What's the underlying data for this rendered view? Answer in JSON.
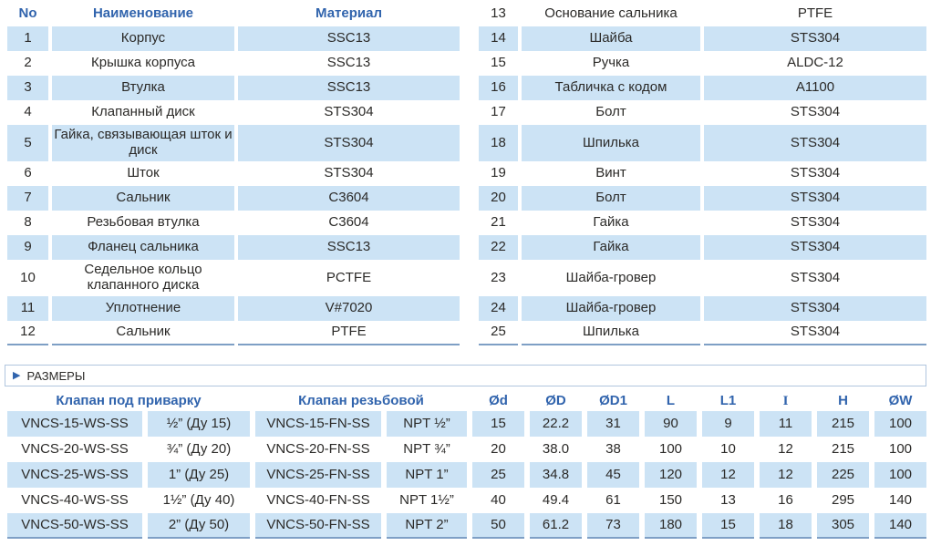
{
  "palette": {
    "accent_blue": "#3164ad",
    "row_blue": "#cce3f5",
    "text": "#2b2a28",
    "table_line": "#7e9fc5",
    "banner_border": "#b0c6de"
  },
  "parts": {
    "headers": {
      "no": "No",
      "name": "Наименование",
      "material": "Материал"
    },
    "left_rows": [
      {
        "no": "1",
        "name": "Корпус",
        "material": "SSC13",
        "shade": true,
        "tall": false
      },
      {
        "no": "2",
        "name": "Крышка корпуса",
        "material": "SSC13",
        "shade": false,
        "tall": false
      },
      {
        "no": "3",
        "name": "Втулка",
        "material": "SSC13",
        "shade": true,
        "tall": false
      },
      {
        "no": "4",
        "name": "Клапанный диск",
        "material": "STS304",
        "shade": false,
        "tall": false
      },
      {
        "no": "5",
        "name": "Гайка, связывающая шток и диск",
        "material": "STS304",
        "shade": true,
        "tall": true
      },
      {
        "no": "6",
        "name": "Шток",
        "material": "STS304",
        "shade": false,
        "tall": false
      },
      {
        "no": "7",
        "name": "Сальник",
        "material": "C3604",
        "shade": true,
        "tall": false
      },
      {
        "no": "8",
        "name": "Резьбовая втулка",
        "material": "C3604",
        "shade": false,
        "tall": false
      },
      {
        "no": "9",
        "name": "Фланец сальника",
        "material": "SSC13",
        "shade": true,
        "tall": false
      },
      {
        "no": "10",
        "name": "Седельное кольцо клапанного диска",
        "material": "PCTFE",
        "shade": false,
        "tall": true
      },
      {
        "no": "11",
        "name": "Уплотнение",
        "material": "V#7020",
        "shade": true,
        "tall": false
      },
      {
        "no": "12",
        "name": "Сальник",
        "material": "PTFE",
        "shade": false,
        "tall": false
      }
    ],
    "right_rows": [
      {
        "no": "13",
        "name": "Основание сальника",
        "material": "PTFE",
        "shade": false,
        "tall": false
      },
      {
        "no": "14",
        "name": "Шайба",
        "material": "STS304",
        "shade": true,
        "tall": false
      },
      {
        "no": "15",
        "name": "Ручка",
        "material": "ALDC-12",
        "shade": false,
        "tall": false
      },
      {
        "no": "16",
        "name": "Табличка с кодом",
        "material": "A1100",
        "shade": true,
        "tall": false
      },
      {
        "no": "17",
        "name": "Болт",
        "material": "STS304",
        "shade": false,
        "tall": false
      },
      {
        "no": "18",
        "name": "Шпилька",
        "material": "STS304",
        "shade": true,
        "tall": true
      },
      {
        "no": "19",
        "name": "Винт",
        "material": "STS304",
        "shade": false,
        "tall": false
      },
      {
        "no": "20",
        "name": "Болт",
        "material": "STS304",
        "shade": true,
        "tall": false
      },
      {
        "no": "21",
        "name": "Гайка",
        "material": "STS304",
        "shade": false,
        "tall": false
      },
      {
        "no": "22",
        "name": "Гайка",
        "material": "STS304",
        "shade": true,
        "tall": false
      },
      {
        "no": "23",
        "name": "Шайба-гровер",
        "material": "STS304",
        "shade": false,
        "tall": true
      },
      {
        "no": "24",
        "name": "Шайба-гровер",
        "material": "STS304",
        "shade": true,
        "tall": false
      },
      {
        "no": "25",
        "name": "Шпилька",
        "material": "STS304",
        "shade": false,
        "tall": false
      }
    ]
  },
  "sizes": {
    "banner_title": "РАЗМЕРЫ",
    "triangle_icon": "▶",
    "group_headers": {
      "weld": "Клапан под приварку",
      "thread": "Клапан резьбовой"
    },
    "dim_headers": [
      "Ød",
      "ØD",
      "ØD1",
      "L",
      "L1",
      "I",
      "H",
      "ØW"
    ],
    "rows": [
      {
        "weld_code": "VNCS-15-WS-SS",
        "weld_size": "½” (Ду 15)",
        "thread_code": "VNCS-15-FN-SS",
        "thread_size": "NPT ½”",
        "values": [
          "15",
          "22.2",
          "31",
          "90",
          "9",
          "11",
          "215",
          "100"
        ],
        "shade": true
      },
      {
        "weld_code": "VNCS-20-WS-SS",
        "weld_size": "¾” (Ду 20)",
        "thread_code": "VNCS-20-FN-SS",
        "thread_size": "NPT ¾”",
        "values": [
          "20",
          "38.0",
          "38",
          "100",
          "10",
          "12",
          "215",
          "100"
        ],
        "shade": false
      },
      {
        "weld_code": "VNCS-25-WS-SS",
        "weld_size": "1” (Ду 25)",
        "thread_code": "VNCS-25-FN-SS",
        "thread_size": "NPT 1”",
        "values": [
          "25",
          "34.8",
          "45",
          "120",
          "12",
          "12",
          "225",
          "100"
        ],
        "shade": true
      },
      {
        "weld_code": "VNCS-40-WS-SS",
        "weld_size": "1½” (Ду 40)",
        "thread_code": "VNCS-40-FN-SS",
        "thread_size": "NPT 1½”",
        "values": [
          "40",
          "49.4",
          "61",
          "150",
          "13",
          "16",
          "295",
          "140"
        ],
        "shade": false
      },
      {
        "weld_code": "VNCS-50-WS-SS",
        "weld_size": "2” (Ду 50)",
        "thread_code": "VNCS-50-FN-SS",
        "thread_size": "NPT 2”",
        "values": [
          "50",
          "61.2",
          "73",
          "180",
          "15",
          "18",
          "305",
          "140"
        ],
        "shade": true
      }
    ]
  }
}
